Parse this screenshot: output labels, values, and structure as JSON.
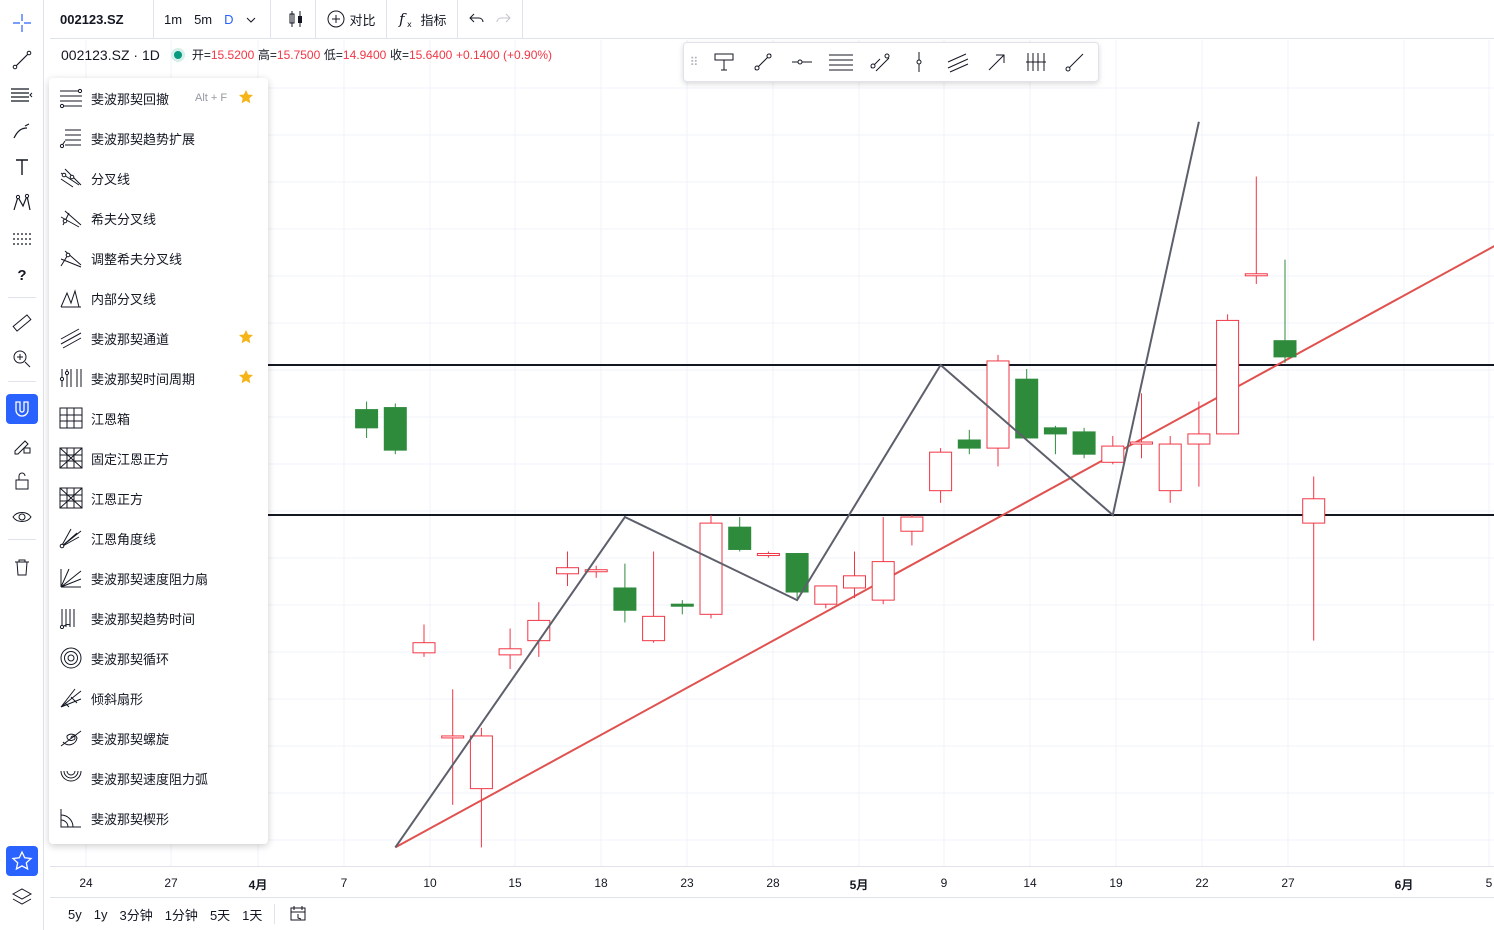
{
  "top_toolbar": {
    "symbol": "002123.SZ",
    "intervals": [
      "1m",
      "5m",
      "D"
    ],
    "active_interval": "D",
    "compare_label": "对比",
    "indicators_label": "指标"
  },
  "legend": {
    "symbol": "002123.SZ · 1D",
    "open_label": "开=",
    "open": "15.5200",
    "high_label": "高=",
    "high": "15.7500",
    "low_label": "低=",
    "low": "14.9400",
    "close_label": "收=",
    "close": "15.6400",
    "change": "+0.1400 (+0.90%)"
  },
  "menu": {
    "items": [
      {
        "label": "斐波那契回撤",
        "icon": "fib-retracement-icon",
        "shortcut": "Alt + F",
        "starred": true
      },
      {
        "label": "斐波那契趋势扩展",
        "icon": "fib-trend-extension-icon",
        "shortcut": "",
        "starred": false
      },
      {
        "label": "分叉线",
        "icon": "pitchfork-icon",
        "shortcut": "",
        "starred": false
      },
      {
        "label": "希夫分叉线",
        "icon": "schiff-pitchfork-icon",
        "shortcut": "",
        "starred": false
      },
      {
        "label": "调整希夫分叉线",
        "icon": "modified-schiff-pitchfork-icon",
        "shortcut": "",
        "starred": false
      },
      {
        "label": "内部分叉线",
        "icon": "inside-pitchfork-icon",
        "shortcut": "",
        "starred": false
      },
      {
        "label": "斐波那契通道",
        "icon": "fib-channel-icon",
        "shortcut": "",
        "starred": true
      },
      {
        "label": "斐波那契时间周期",
        "icon": "fib-time-zone-icon",
        "shortcut": "",
        "starred": true
      },
      {
        "label": "江恩箱",
        "icon": "gann-box-icon",
        "shortcut": "",
        "starred": false
      },
      {
        "label": "固定江恩正方",
        "icon": "fixed-gann-square-icon",
        "shortcut": "",
        "starred": false
      },
      {
        "label": "江恩正方",
        "icon": "gann-square-icon",
        "shortcut": "",
        "starred": false
      },
      {
        "label": "江恩角度线",
        "icon": "gann-fan-icon",
        "shortcut": "",
        "starred": false
      },
      {
        "label": "斐波那契速度阻力扇",
        "icon": "fib-speed-fan-icon",
        "shortcut": "",
        "starred": false
      },
      {
        "label": "斐波那契趋势时间",
        "icon": "fib-trend-time-icon",
        "shortcut": "",
        "starred": false
      },
      {
        "label": "斐波那契循环",
        "icon": "fib-circles-icon",
        "shortcut": "",
        "starred": false
      },
      {
        "label": "倾斜扇形",
        "icon": "tilted-fan-icon",
        "shortcut": "",
        "starred": false
      },
      {
        "label": "斐波那契螺旋",
        "icon": "fib-spiral-icon",
        "shortcut": "",
        "starred": false
      },
      {
        "label": "斐波那契速度阻力弧",
        "icon": "fib-speed-arcs-icon",
        "shortcut": "",
        "starred": false
      },
      {
        "label": "斐波那契楔形",
        "icon": "fib-wedge-icon",
        "shortcut": "",
        "starred": false
      }
    ]
  },
  "x_axis": {
    "ticks": [
      {
        "label": "24",
        "bold": false
      },
      {
        "label": "27",
        "bold": false
      },
      {
        "label": "4月",
        "bold": true
      },
      {
        "label": "7",
        "bold": false
      },
      {
        "label": "10",
        "bold": false
      },
      {
        "label": "15",
        "bold": false
      },
      {
        "label": "18",
        "bold": false
      },
      {
        "label": "23",
        "bold": false
      },
      {
        "label": "28",
        "bold": false
      },
      {
        "label": "5月",
        "bold": true
      },
      {
        "label": "9",
        "bold": false
      },
      {
        "label": "14",
        "bold": false
      },
      {
        "label": "19",
        "bold": false
      },
      {
        "label": "22",
        "bold": false
      },
      {
        "label": "27",
        "bold": false
      },
      {
        "label": "6月",
        "bold": true
      },
      {
        "label": "5",
        "bold": false
      }
    ]
  },
  "bottom_bar": {
    "ranges": [
      "5y",
      "1y",
      "3分钟",
      "1分钟",
      "5天",
      "1天"
    ]
  },
  "colors": {
    "up": "#f23645",
    "down": "#2e8b3c",
    "accent": "#2962ff",
    "drawing_gray": "#5d606b",
    "trendline_red": "#e0524f",
    "star": "#f5b417"
  },
  "chart_data": {
    "type": "candlestick",
    "title": "",
    "note": "Prices approximate, read from the horizontal reference lines and the legend values.",
    "hidden_bars_behind_menu": 3,
    "candles": [
      {
        "o": 16.08,
        "h": 16.12,
        "l": 15.94,
        "c": 15.99
      },
      {
        "o": 16.09,
        "h": 16.11,
        "l": 15.86,
        "c": 15.88
      },
      {
        "o": 14.88,
        "h": 15.02,
        "l": 14.86,
        "c": 14.93
      },
      {
        "o": 14.47,
        "h": 14.7,
        "l": 14.13,
        "c": 14.47
      },
      {
        "o": 14.21,
        "h": 14.51,
        "l": 13.92,
        "c": 14.47
      },
      {
        "o": 14.87,
        "h": 15.0,
        "l": 14.8,
        "c": 14.9
      },
      {
        "o": 14.94,
        "h": 15.13,
        "l": 14.86,
        "c": 15.04
      },
      {
        "o": 15.27,
        "h": 15.38,
        "l": 15.21,
        "c": 15.3
      },
      {
        "o": 15.28,
        "h": 15.31,
        "l": 15.25,
        "c": 15.29
      },
      {
        "o": 15.2,
        "h": 15.32,
        "l": 15.03,
        "c": 15.09
      },
      {
        "o": 14.94,
        "h": 15.38,
        "l": 14.93,
        "c": 15.06
      },
      {
        "o": 15.12,
        "h": 15.14,
        "l": 15.07,
        "c": 15.11
      },
      {
        "o": 15.07,
        "h": 15.56,
        "l": 15.05,
        "c": 15.52
      },
      {
        "o": 15.5,
        "h": 15.55,
        "l": 15.38,
        "c": 15.39
      },
      {
        "o": 15.36,
        "h": 15.38,
        "l": 15.35,
        "c": 15.37
      },
      {
        "o": 15.37,
        "h": 15.37,
        "l": 15.15,
        "c": 15.18
      },
      {
        "o": 15.12,
        "h": 15.21,
        "l": 15.1,
        "c": 15.21
      },
      {
        "o": 15.2,
        "h": 15.38,
        "l": 15.15,
        "c": 15.26
      },
      {
        "o": 15.14,
        "h": 15.55,
        "l": 15.12,
        "c": 15.33
      },
      {
        "o": 15.48,
        "h": 15.56,
        "l": 15.41,
        "c": 15.55
      },
      {
        "o": 15.68,
        "h": 15.89,
        "l": 15.62,
        "c": 15.87
      },
      {
        "o": 15.93,
        "h": 15.98,
        "l": 15.86,
        "c": 15.89
      },
      {
        "o": 15.89,
        "h": 16.35,
        "l": 15.8,
        "c": 16.32
      },
      {
        "o": 16.23,
        "h": 16.28,
        "l": 15.94,
        "c": 15.94
      },
      {
        "o": 15.99,
        "h": 16.0,
        "l": 15.86,
        "c": 15.96
      },
      {
        "o": 15.97,
        "h": 15.99,
        "l": 15.84,
        "c": 15.86
      },
      {
        "o": 15.82,
        "h": 15.95,
        "l": 15.81,
        "c": 15.9
      },
      {
        "o": 15.91,
        "h": 16.16,
        "l": 15.84,
        "c": 15.92
      },
      {
        "o": 15.68,
        "h": 15.95,
        "l": 15.62,
        "c": 15.91
      },
      {
        "o": 15.91,
        "h": 16.12,
        "l": 15.7,
        "c": 15.96
      },
      {
        "o": 15.96,
        "h": 16.55,
        "l": 15.96,
        "c": 16.52
      },
      {
        "o": 16.75,
        "h": 17.23,
        "l": 16.7,
        "c": 16.75
      },
      {
        "o": 16.42,
        "h": 16.82,
        "l": 16.31,
        "c": 16.34
      },
      {
        "o": 15.52,
        "h": 15.75,
        "l": 14.94,
        "c": 15.64
      }
    ],
    "horizontal_lines": [
      16.3,
      15.56
    ],
    "zigzag_points": [
      {
        "bar": 4,
        "price": 13.92
      },
      {
        "bar": 12,
        "price": 15.55
      },
      {
        "bar": 18,
        "price": 15.14
      },
      {
        "bar": 23,
        "price": 16.3
      },
      {
        "bar": 29,
        "price": 15.56
      },
      {
        "bar": 32,
        "price": 17.5
      }
    ],
    "trend_line": [
      {
        "bar": 4,
        "price": 13.92
      },
      {
        "bar": 43.5,
        "price": 16.98
      }
    ],
    "x_tick_labels": [
      "24",
      "27",
      "4月",
      "7",
      "10",
      "15",
      "18",
      "23",
      "28",
      "5月",
      "9",
      "14",
      "19",
      "22",
      "27",
      "6月",
      "5"
    ]
  }
}
